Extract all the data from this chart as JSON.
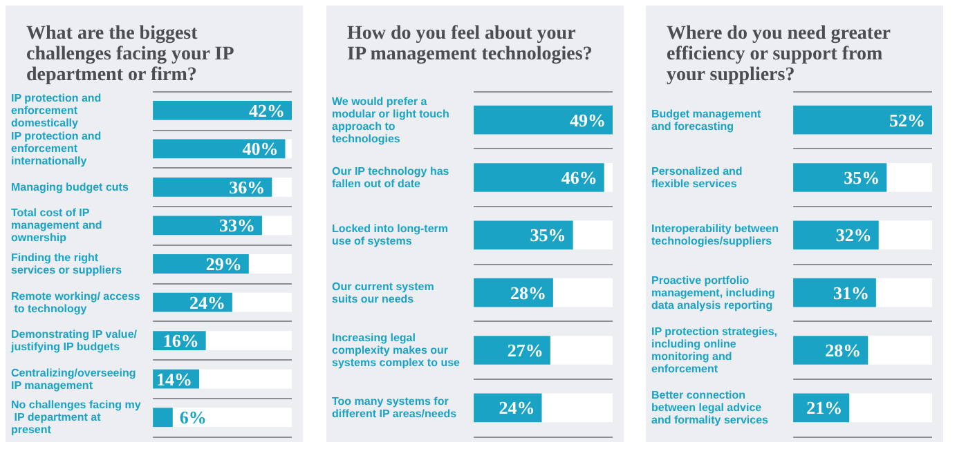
{
  "chart_data": [
    {
      "type": "bar",
      "orientation": "horizontal",
      "title": "What are the biggest challenges facing your IP department or firm?",
      "color": "#1ba3c6",
      "grid": "y",
      "categories": [
        "IP protection and enforcement domestically",
        "IP protection and enforcement internationally",
        "Managing budget cuts",
        "Total cost of IP management and ownership",
        "Finding the right services or suppliers",
        "Remote working/ access to technology",
        "Demonstrating IP value/ justifying IP budgets",
        "Centralizing/overseeing IP management",
        "No challenges facing my IP department at present"
      ],
      "values": [
        42,
        40,
        36,
        33,
        29,
        24,
        16,
        14,
        6
      ],
      "value_labels": [
        "42%",
        "40%",
        "36%",
        "33%",
        "29%",
        "24%",
        "16%",
        "14%",
        "6%"
      ]
    },
    {
      "type": "bar",
      "orientation": "horizontal",
      "title": "How do you feel about your IP management technologies?",
      "color": "#1ba3c6",
      "grid": "y",
      "categories": [
        "We would prefer a modular or light touch approach to technologies",
        "Our IP technology has fallen out of date",
        "Locked into long-term use of systems",
        "Our current system suits our needs",
        "Increasing legal complexity makes our systems complex to use",
        "Too many systems for different IP areas/needs"
      ],
      "values": [
        49,
        46,
        35,
        28,
        27,
        24
      ],
      "value_labels": [
        "49%",
        "46%",
        "35%",
        "28%",
        "27%",
        "24%"
      ]
    },
    {
      "type": "bar",
      "orientation": "horizontal",
      "title": "Where do you need greater efficiency or support from your suppliers?",
      "color": "#1ba3c6",
      "grid": "y",
      "categories": [
        "Budget management and forecasting",
        "Personalized and flexible services",
        "Interoperability between technologies/suppliers",
        "Proactive portfolio management, including data analysis reporting",
        "IP protection strategies, including online monitoring and enforcement",
        "Better connection between legal advice and formality services"
      ],
      "values": [
        52,
        35,
        32,
        31,
        28,
        21
      ],
      "value_labels": [
        "52%",
        "35%",
        "32%",
        "31%",
        "28%",
        "21%"
      ]
    }
  ]
}
